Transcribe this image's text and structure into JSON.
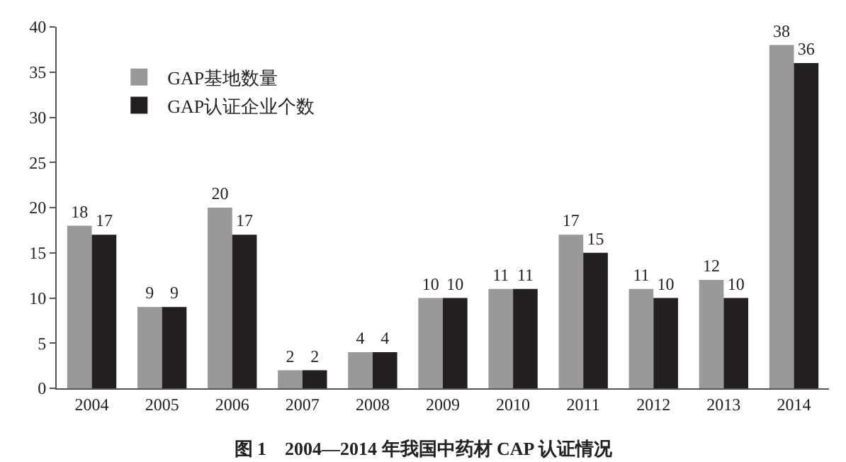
{
  "chart_data": {
    "type": "bar",
    "title": "图 1　2004—2014 年我国中药材 CAP 认证情况",
    "categories": [
      "2004",
      "2005",
      "2006",
      "2007",
      "2008",
      "2009",
      "2010",
      "2011",
      "2012",
      "2013",
      "2014"
    ],
    "series": [
      {
        "name": "GAP基地数量",
        "color": "#999999",
        "values": [
          18,
          9,
          20,
          2,
          4,
          10,
          11,
          17,
          11,
          12,
          38
        ]
      },
      {
        "name": "GAP认证企业个数",
        "color": "#231f20",
        "values": [
          17,
          9,
          17,
          2,
          4,
          10,
          11,
          15,
          10,
          10,
          36
        ]
      }
    ],
    "ylim": [
      0,
      40
    ],
    "yticks": [
      0,
      5,
      10,
      15,
      20,
      25,
      30,
      35,
      40
    ],
    "data_labels": true,
    "legend": "top left",
    "grid": false
  }
}
